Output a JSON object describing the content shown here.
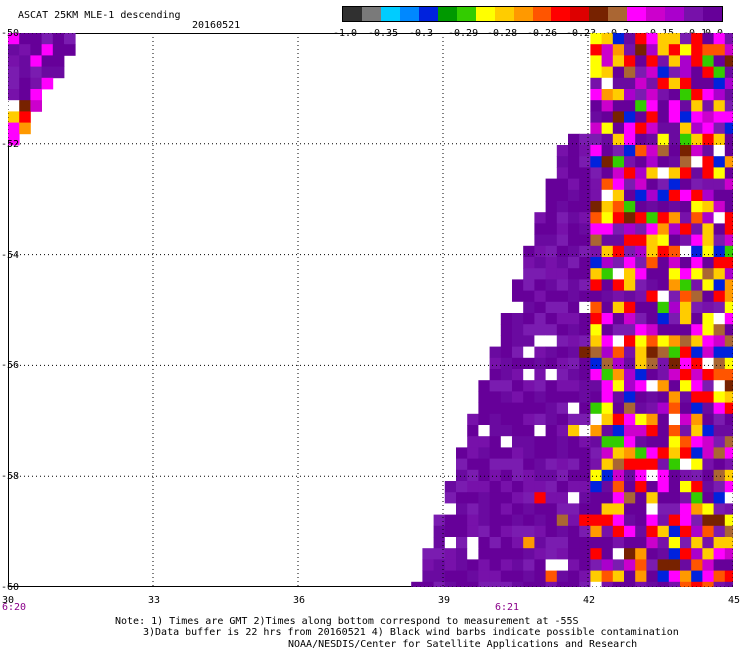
{
  "header": {
    "title": "ASCAT 25KM MLE-1 descending",
    "date": "20160521"
  },
  "colorbar": {
    "labels": [
      "-1.0",
      "-0.35",
      "-0.3",
      "-0.29",
      "-0.28",
      "-0.26",
      "-0.23",
      "-0.2",
      "-0.15",
      "-0.1",
      "0.0"
    ],
    "colors": [
      "#303030",
      "#7a7a7a",
      "#00ccff",
      "#0088ff",
      "#0022dd",
      "#009900",
      "#33cc00",
      "#ffff00",
      "#ffcc00",
      "#ff9900",
      "#ff5500",
      "#ff0000",
      "#dd0000",
      "#772200",
      "#aa6633",
      "#ff00ff",
      "#cc00cc",
      "#aa00cc",
      "#7711aa",
      "#660099"
    ]
  },
  "map": {
    "lon_range": [
      30,
      45
    ],
    "lat_range": [
      -60,
      -50
    ],
    "x_ticks": [
      "30",
      "33",
      "36",
      "39",
      "42",
      "45"
    ],
    "y_ticks": [
      "-50",
      "-52",
      "-54",
      "-56",
      "-58",
      "-60"
    ],
    "times": [
      {
        "label": "6:20",
        "lon": 30
      },
      {
        "label": "6:21",
        "lon": 40.2
      }
    ]
  },
  "notes": {
    "line1": "Note: 1) Times are GMT 2)Times along bottom correspond to measurement at -55S",
    "line2": "3)Data buffer is 22 hrs from 20160521 4) Black wind barbs indicate possible contamination",
    "line3": "NOAA/NESDIS/Center for Satellite Applications and Research"
  }
}
